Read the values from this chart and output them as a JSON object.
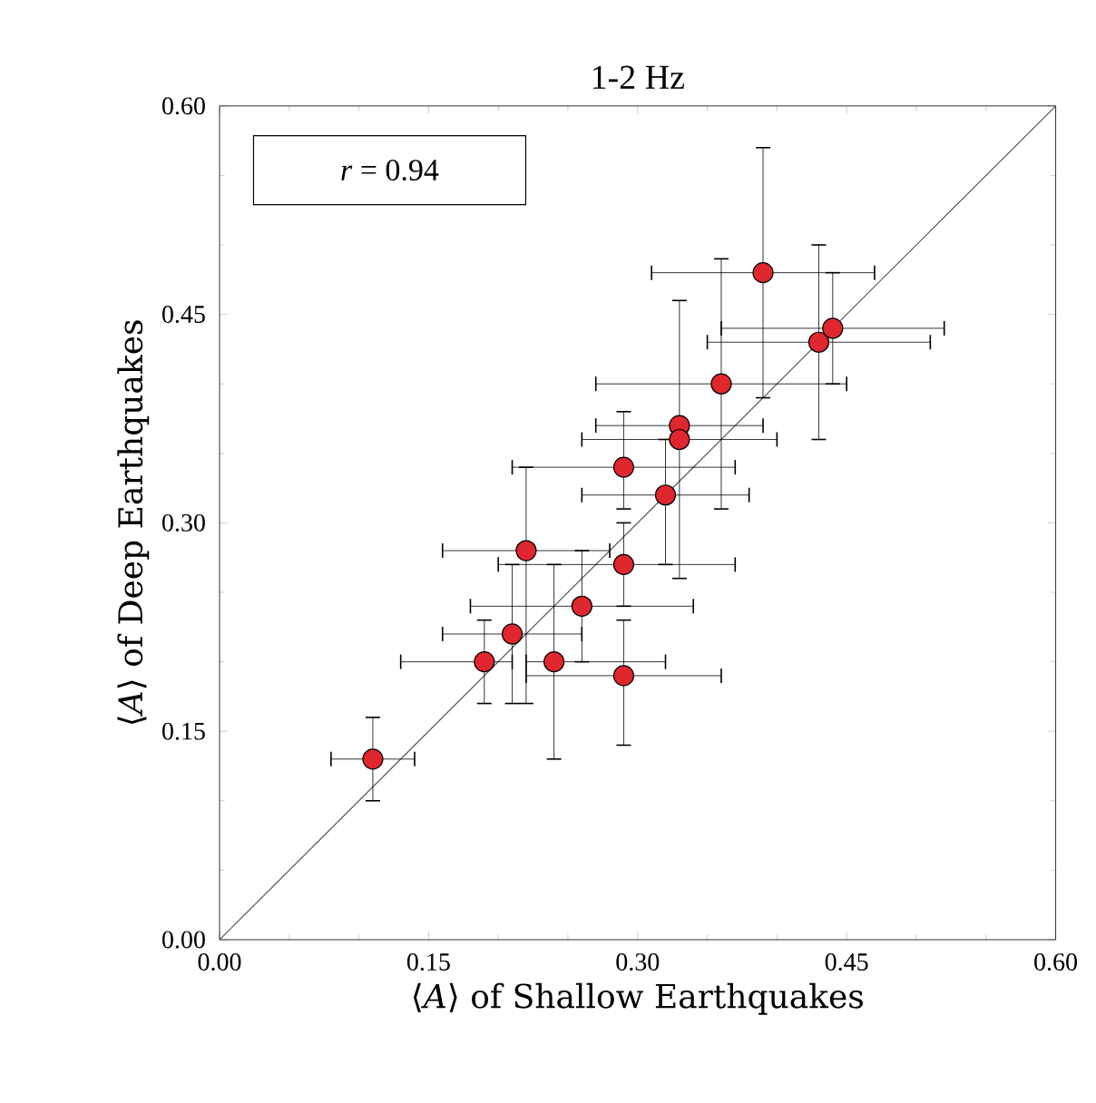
{
  "chart_data": {
    "type": "scatter",
    "title": "1-2 Hz",
    "xlabel": "⟨*A*⟩ of Shallow Earthquakes",
    "ylabel": "⟨*A*⟩ of Deep Earthquakes",
    "annotations": [
      "*r* = 0.94"
    ],
    "xlim": [
      0,
      0.6
    ],
    "ylim": [
      0,
      0.6
    ],
    "xticks": [
      {
        "value": 0,
        "label": "0.00"
      },
      {
        "value": 0.15,
        "label": "0.15"
      },
      {
        "value": 0.3,
        "label": "0.30"
      },
      {
        "value": 0.45,
        "label": "0.45"
      },
      {
        "value": 0.6,
        "label": "0.60"
      }
    ],
    "yticks": [
      {
        "value": 0,
        "label": "0.00"
      },
      {
        "value": 0.15,
        "label": "0.15"
      },
      {
        "value": 0.3,
        "label": "0.30"
      },
      {
        "value": 0.45,
        "label": "0.45"
      },
      {
        "value": 0.6,
        "label": "0.60"
      }
    ],
    "grid": false,
    "series": [
      {
        "type": "line",
        "marker": "none",
        "color": "#555555",
        "x": [
          0,
          0.6
        ],
        "values": [
          0,
          0.6
        ]
      },
      {
        "marker": "circle",
        "color": "#e0262e",
        "x": [
          0.11,
          0.19,
          0.21,
          0.22,
          0.24,
          0.26,
          0.29,
          0.29,
          0.29,
          0.32,
          0.33,
          0.33,
          0.36,
          0.39,
          0.43,
          0.44
        ],
        "values": [
          0.13,
          0.2,
          0.22,
          0.28,
          0.2,
          0.24,
          0.19,
          0.27,
          0.34,
          0.32,
          0.37,
          0.36,
          0.4,
          0.48,
          0.43,
          0.44
        ],
        "xerrors": [
          [
            0.08,
            0.14
          ],
          [
            0.13,
            0.21
          ],
          [
            0.16,
            0.26
          ],
          [
            0.16,
            0.28
          ],
          [
            0.22,
            0.32
          ],
          [
            0.18,
            0.34
          ],
          [
            0.22,
            0.36
          ],
          [
            0.2,
            0.37
          ],
          [
            0.21,
            0.37
          ],
          [
            0.26,
            0.38
          ],
          [
            0.27,
            0.39
          ],
          [
            0.26,
            0.4
          ],
          [
            0.27,
            0.45
          ],
          [
            0.31,
            0.47
          ],
          [
            0.35,
            0.51
          ],
          [
            0.36,
            0.52
          ]
        ],
        "errors": [
          [
            0.1,
            0.16
          ],
          [
            0.17,
            0.23
          ],
          [
            0.17,
            0.27
          ],
          [
            0.17,
            0.34
          ],
          [
            0.13,
            0.27
          ],
          [
            0.2,
            0.28
          ],
          [
            0.14,
            0.23
          ],
          [
            0.24,
            0.3
          ],
          [
            0.31,
            0.38
          ],
          [
            0.27,
            0.36
          ],
          [
            0.26,
            0.46
          ],
          null,
          [
            0.31,
            0.49
          ],
          [
            0.39,
            0.57
          ],
          [
            0.36,
            0.5
          ],
          [
            0.4,
            0.48
          ]
        ]
      }
    ]
  }
}
